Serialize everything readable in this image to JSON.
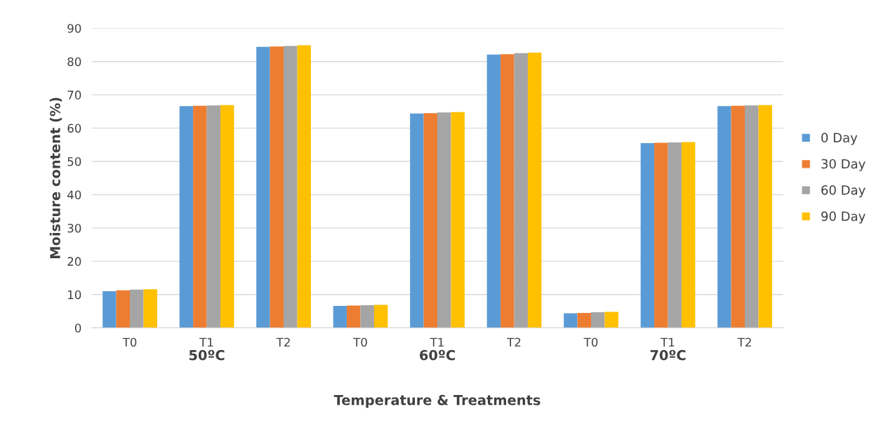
{
  "chart_data": {
    "type": "bar",
    "xlabel": "Temperature & Treatments",
    "ylabel": "Moisture content (%)",
    "categories": [
      "T0",
      "T1",
      "T2",
      "T0",
      "T1",
      "T2",
      "T0",
      "T1",
      "T2"
    ],
    "annotations": [
      "50ºC",
      "60ºC",
      "70ºC"
    ],
    "series": [
      {
        "name": "0 Day",
        "color": "#5b9bd5",
        "values": [
          11.0,
          66.6,
          84.4,
          6.6,
          64.4,
          82.1,
          4.4,
          55.5,
          66.6
        ]
      },
      {
        "name": "30 Day",
        "color": "#ed7d31",
        "values": [
          11.3,
          66.7,
          84.5,
          6.7,
          64.5,
          82.2,
          4.5,
          55.6,
          66.7
        ]
      },
      {
        "name": "60 Day",
        "color": "#a5a5a5",
        "values": [
          11.5,
          66.8,
          84.7,
          6.8,
          64.7,
          82.5,
          4.7,
          55.7,
          66.8
        ]
      },
      {
        "name": "90 Day",
        "color": "#ffc000",
        "values": [
          11.6,
          66.9,
          84.9,
          6.9,
          64.8,
          82.7,
          4.8,
          55.8,
          66.9
        ]
      }
    ],
    "ylim": [
      0,
      90
    ],
    "yticks": [
      0,
      10,
      20,
      30,
      40,
      50,
      60,
      70,
      80,
      90
    ],
    "grid": "y",
    "legend": "right"
  }
}
